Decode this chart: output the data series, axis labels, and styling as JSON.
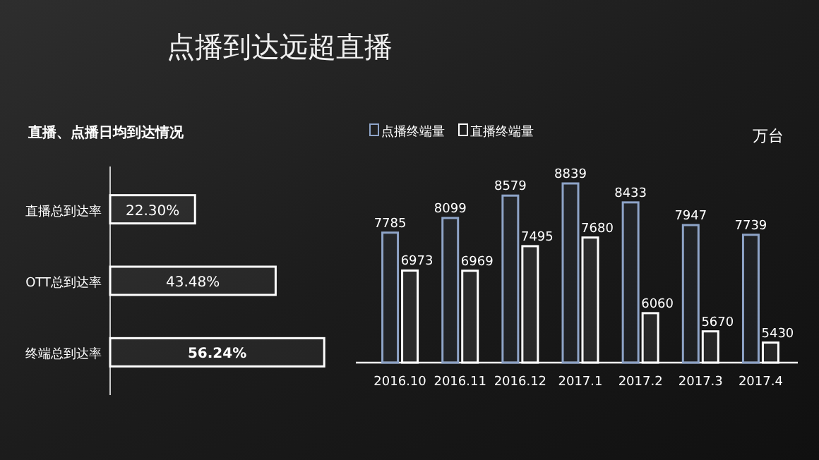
{
  "chart_data": [
    {
      "type": "bar",
      "orientation": "horizontal",
      "title": "点播到达远超直播",
      "subtitle": "直播、点播日均到达情况",
      "categories": [
        "直播总到达率",
        "OTT总到达率",
        "终端总到达率"
      ],
      "values": [
        22.3,
        43.48,
        56.24
      ],
      "value_labels": [
        "22.30%",
        "43.48%",
        "56.24%"
      ],
      "color": "#ffffff",
      "xlim": [
        0,
        57.5
      ],
      "tick_labels": "y"
    },
    {
      "type": "bar",
      "ylabel": "万台",
      "categories": [
        "2016.10",
        "2016.11",
        "2016.12",
        "2017.1",
        "2017.2",
        "2017.3",
        "2017.4"
      ],
      "series": [
        {
          "name": "点播终端量",
          "color": "#8ea4c8",
          "values": [
            7785,
            8099,
            8579,
            8839,
            8433,
            7947,
            7739
          ]
        },
        {
          "name": "直播终端量",
          "color": "#ffffff",
          "values": [
            6973,
            6969,
            7495,
            7680,
            6060,
            5670,
            5430
          ]
        }
      ],
      "ylim": [
        5000,
        8839
      ],
      "data_labels": true,
      "legend": "top left",
      "tick_labels": "x"
    }
  ]
}
